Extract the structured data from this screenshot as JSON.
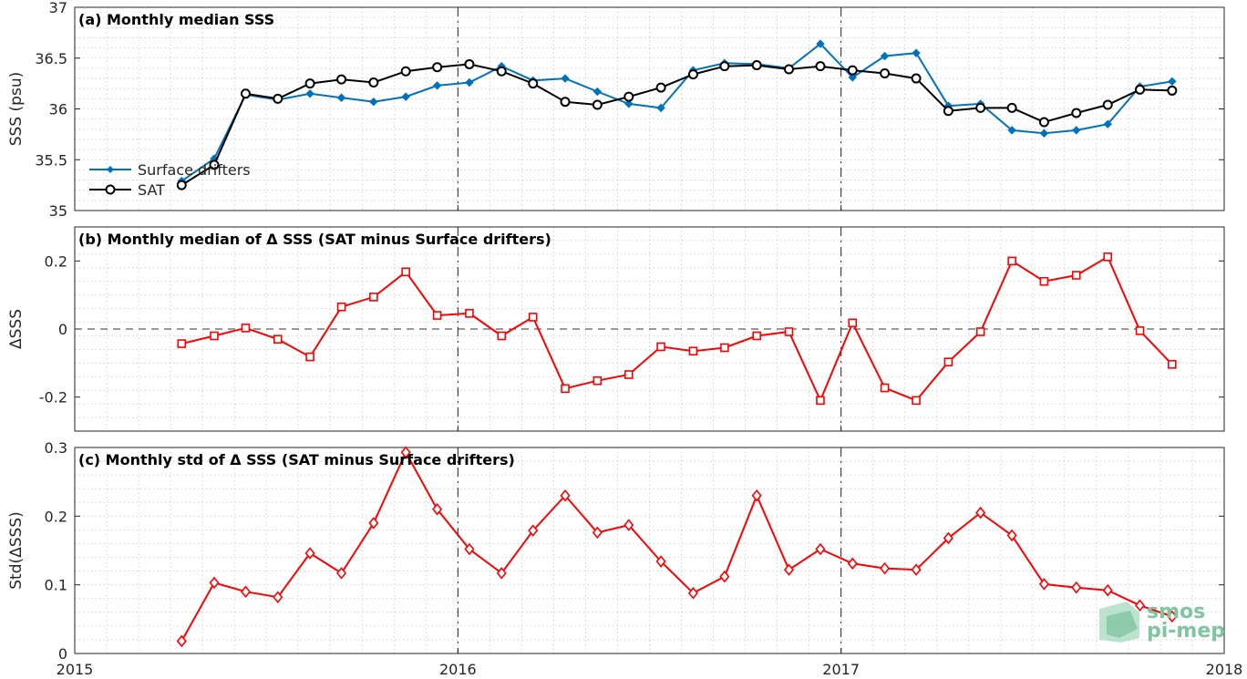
{
  "chart_data": [
    {
      "type": "line",
      "title": "(a) Monthly median SSS",
      "xlabel": "",
      "ylabel": "SSS (psu)",
      "xlim": [
        2015,
        2018
      ],
      "ylim": [
        35,
        37
      ],
      "yticks": [
        35,
        35.5,
        36,
        36.5,
        37
      ],
      "ytick_labels": [
        "35",
        "35.5",
        "36",
        "36.5",
        "37"
      ],
      "grid": true,
      "legend_position": "left",
      "x": [
        2015.279,
        2015.364,
        2015.446,
        2015.53,
        2015.614,
        2015.696,
        2015.78,
        2015.864,
        2015.946,
        2016.03,
        2016.114,
        2016.196,
        2016.28,
        2016.364,
        2016.446,
        2016.53,
        2016.614,
        2016.696,
        2016.78,
        2016.864,
        2016.946,
        2017.03,
        2017.114,
        2017.196,
        2017.28,
        2017.364,
        2017.446,
        2017.53,
        2017.614,
        2017.696,
        2017.78,
        2017.864
      ],
      "series": [
        {
          "name": "Surface drifters",
          "color": "#0072bd",
          "marker": "dot",
          "values": [
            35.29,
            35.51,
            36.14,
            36.09,
            36.15,
            36.11,
            36.07,
            36.12,
            36.23,
            36.26,
            36.42,
            36.28,
            36.3,
            36.17,
            36.05,
            36.01,
            36.38,
            36.45,
            36.44,
            36.4,
            36.64,
            36.31,
            36.52,
            36.55,
            36.03,
            36.05,
            35.79,
            35.76,
            35.79,
            35.85,
            36.22,
            36.27
          ]
        },
        {
          "name": "SAT",
          "color": "#000000",
          "marker": "circle",
          "values": [
            35.25,
            35.45,
            36.15,
            36.1,
            36.25,
            36.29,
            36.26,
            36.37,
            36.41,
            36.44,
            36.37,
            36.25,
            36.07,
            36.04,
            36.12,
            36.21,
            36.34,
            36.42,
            36.43,
            36.39,
            36.42,
            36.38,
            36.35,
            36.3,
            35.98,
            36.01,
            36.01,
            35.87,
            35.96,
            36.04,
            36.19,
            36.18
          ]
        }
      ]
    },
    {
      "type": "line",
      "title": "(b) Monthly median of Δ SSS (SAT minus Surface drifters)",
      "xlabel": "",
      "ylabel": "ΔSSS",
      "xlim": [
        2015,
        2018
      ],
      "ylim": [
        -0.3,
        0.3
      ],
      "yticks": [
        -0.2,
        0,
        0.2
      ],
      "ytick_labels": [
        "-0.2",
        "0",
        "0.2"
      ],
      "grid": true,
      "x": [
        2015.279,
        2015.364,
        2015.446,
        2015.53,
        2015.614,
        2015.696,
        2015.78,
        2015.864,
        2015.946,
        2016.03,
        2016.114,
        2016.196,
        2016.28,
        2016.364,
        2016.446,
        2016.53,
        2016.614,
        2016.696,
        2016.78,
        2016.864,
        2016.946,
        2017.03,
        2017.114,
        2017.196,
        2017.28,
        2017.364,
        2017.446,
        2017.53,
        2017.614,
        2017.696,
        2017.78,
        2017.864
      ],
      "series": [
        {
          "color": "#ff0000",
          "marker": "square",
          "values": [
            -0.043,
            -0.02,
            0.003,
            -0.03,
            -0.082,
            0.065,
            0.094,
            0.168,
            0.04,
            0.046,
            -0.02,
            0.035,
            -0.175,
            -0.152,
            -0.134,
            -0.052,
            -0.065,
            -0.055,
            -0.02,
            -0.008,
            -0.21,
            0.018,
            -0.173,
            -0.21,
            -0.097,
            -0.008,
            0.2,
            0.14,
            0.158,
            0.212,
            -0.005,
            -0.104
          ]
        }
      ]
    },
    {
      "type": "line",
      "title": "(c) Monthly std of Δ SSS (SAT minus Surface drifters)",
      "xlabel": "",
      "ylabel": "Std(ΔSSS)",
      "xlim": [
        2015,
        2018
      ],
      "ylim": [
        0,
        0.3
      ],
      "yticks": [
        0,
        0.1,
        0.2,
        0.3
      ],
      "ytick_labels": [
        "0",
        "0.1",
        "0.2",
        "0.3"
      ],
      "xticks": [
        2015,
        2016,
        2017,
        2018
      ],
      "xtick_labels": [
        "2015",
        "2016",
        "2017",
        "2018"
      ],
      "grid": true,
      "x": [
        2015.279,
        2015.364,
        2015.446,
        2015.53,
        2015.614,
        2015.696,
        2015.78,
        2015.864,
        2015.946,
        2016.03,
        2016.114,
        2016.196,
        2016.28,
        2016.364,
        2016.446,
        2016.53,
        2016.614,
        2016.696,
        2016.78,
        2016.864,
        2016.946,
        2017.03,
        2017.114,
        2017.196,
        2017.28,
        2017.364,
        2017.446,
        2017.53,
        2017.614,
        2017.696,
        2017.78,
        2017.864
      ],
      "series": [
        {
          "color": "#ff0000",
          "marker": "diamond",
          "values": [
            0.018,
            0.103,
            0.09,
            0.082,
            0.146,
            0.117,
            0.19,
            0.293,
            0.21,
            0.152,
            0.117,
            0.179,
            0.23,
            0.176,
            0.187,
            0.134,
            0.088,
            0.112,
            0.23,
            0.122,
            0.152,
            0.131,
            0.124,
            0.122,
            0.168,
            0.205,
            0.172,
            0.101,
            0.096,
            0.092,
            0.07,
            0.054
          ]
        }
      ]
    }
  ],
  "watermark": {
    "line1": "smos",
    "line2": "pi-mep",
    "color": "#7fc6a0"
  }
}
